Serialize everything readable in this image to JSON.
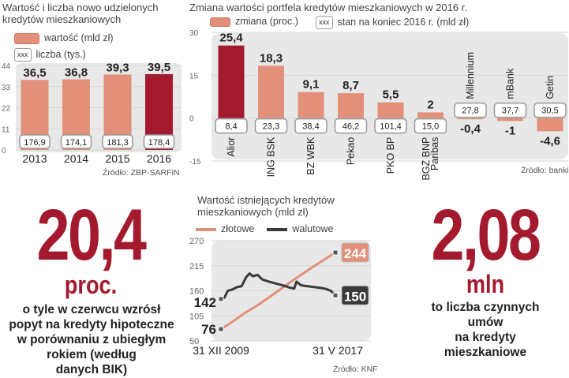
{
  "colors": {
    "bar": "#e2907a",
    "highlight": "#a31a2e",
    "panel": "#e8e8e8",
    "walutowe": "#3a3a3a",
    "zlotowe": "#e2907a"
  },
  "chart_data": [
    {
      "type": "bar",
      "title": "Wartość i liczba nowo udzielonych kredytów mieszkaniowych",
      "legend": {
        "value": "wartość (mld zł)",
        "count": "liczba (tys.)",
        "count_marker": "xxx"
      },
      "categories": [
        "2013",
        "2014",
        "2015",
        "2016"
      ],
      "values": [
        36.5,
        36.8,
        39.3,
        39.5
      ],
      "value_labels": [
        "36,5",
        "36,8",
        "39,3",
        "39,5"
      ],
      "counts": [
        "176,9",
        "174,1",
        "181,3",
        "178,4"
      ],
      "highlight_index": 3,
      "yticks": [
        "44",
        "33",
        "22",
        "11",
        "0"
      ],
      "ylim": [
        0,
        44
      ],
      "source": "Źródło: ZBP-SARFiN"
    },
    {
      "type": "bar",
      "title": "Zmiana wartości portfela kredytów mieszkaniowych w 2016 r.",
      "legend": {
        "value": "zmiana (proc.)",
        "count": "stan na koniec 2016 r. (mld zł)",
        "count_marker": "xxx"
      },
      "categories": [
        "Alior",
        "ING BSK",
        "BZ WBK",
        "Pekao",
        "PKO BP",
        "BGŻ BNP Paribas",
        "Millennium",
        "mBank",
        "Getin"
      ],
      "values": [
        25.4,
        18.3,
        9.1,
        8.7,
        5.5,
        2,
        -0.4,
        -1,
        -4.6
      ],
      "value_labels": [
        "25,4",
        "18,3",
        "9,1",
        "8,7",
        "5,5",
        "2",
        "-0,4",
        "-1",
        "-4,6"
      ],
      "counts": [
        "8,4",
        "23,3",
        "38,4",
        "46,2",
        "101,4",
        "15,0",
        "27,8",
        "37,7",
        "30,5"
      ],
      "highlight_index": 0,
      "yticks": [
        "30",
        "15",
        "0",
        "-15"
      ],
      "ylim": [
        -15,
        30
      ],
      "source": "Źródło: banki"
    },
    {
      "type": "line",
      "title": "Wartość istniejących kredytów mieszkaniowych (mld zł)",
      "series": [
        {
          "name": "złotowe",
          "x": [
            0,
            0.1,
            0.2,
            0.3,
            0.4,
            0.5,
            0.6,
            0.7,
            0.8,
            0.9,
            1
          ],
          "y": [
            76,
            92,
            110,
            125,
            142,
            160,
            178,
            195,
            212,
            228,
            244
          ]
        },
        {
          "name": "walutowe",
          "x": [
            0,
            0.03,
            0.06,
            0.1,
            0.14,
            0.18,
            0.22,
            0.25,
            0.28,
            0.32,
            0.36,
            0.42,
            0.48,
            0.54,
            0.6,
            0.64,
            0.66,
            0.7,
            0.76,
            0.82,
            0.88,
            0.92,
            0.96,
            1
          ],
          "y": [
            142,
            145,
            160,
            163,
            168,
            170,
            190,
            198,
            192,
            195,
            185,
            180,
            176,
            172,
            167,
            165,
            180,
            172,
            170,
            168,
            166,
            164,
            160,
            150
          ]
        }
      ],
      "start_label": {
        "zlotowe": "76",
        "walutowe": "142"
      },
      "end_label": {
        "zlotowe": "244",
        "walutowe": "150"
      },
      "xlabels": [
        "31 XII 2009",
        "31 V 2017"
      ],
      "yticks": [
        "270",
        "215",
        "160",
        "105",
        "50"
      ],
      "ylim": [
        50,
        270
      ],
      "source": "Źródło: KNF"
    }
  ],
  "stat_left": {
    "value": "20,4",
    "unit": "proc.",
    "lines": [
      "o tyle w czerwcu wzrósł",
      "popyt na kredyty hipoteczne",
      "w porównaniu z ubiegłym",
      "rokiem (według",
      "danych BIK)"
    ]
  },
  "stat_right": {
    "value": "2,08",
    "unit": "mln",
    "lines": [
      "to liczba czynnych",
      "umów",
      "na kredyty",
      "mieszkaniowe"
    ]
  }
}
